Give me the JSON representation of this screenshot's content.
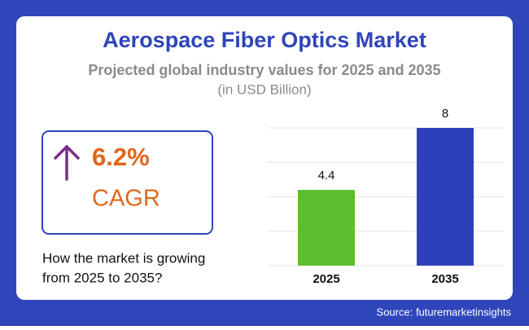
{
  "header": {
    "title": "Aerospace Fiber Optics Market",
    "subtitle": "Projected global industry values for 2025 and 2035",
    "unit": "(in USD Billion)"
  },
  "cagr": {
    "value": "6.2%",
    "label": "CAGR"
  },
  "note": {
    "lines": [
      "How the market is growing",
      "from 2025 to 2035?"
    ]
  },
  "source": "Source: futuremarketinsights",
  "chart_data": {
    "type": "bar",
    "categories": [
      "2025",
      "2035"
    ],
    "values": [
      4.4,
      8
    ],
    "colors": [
      "#5cbd2e",
      "#2e3fba"
    ],
    "ylim": [
      0,
      8
    ],
    "yticks": [
      0,
      2,
      4,
      6,
      8
    ],
    "grid": true
  }
}
